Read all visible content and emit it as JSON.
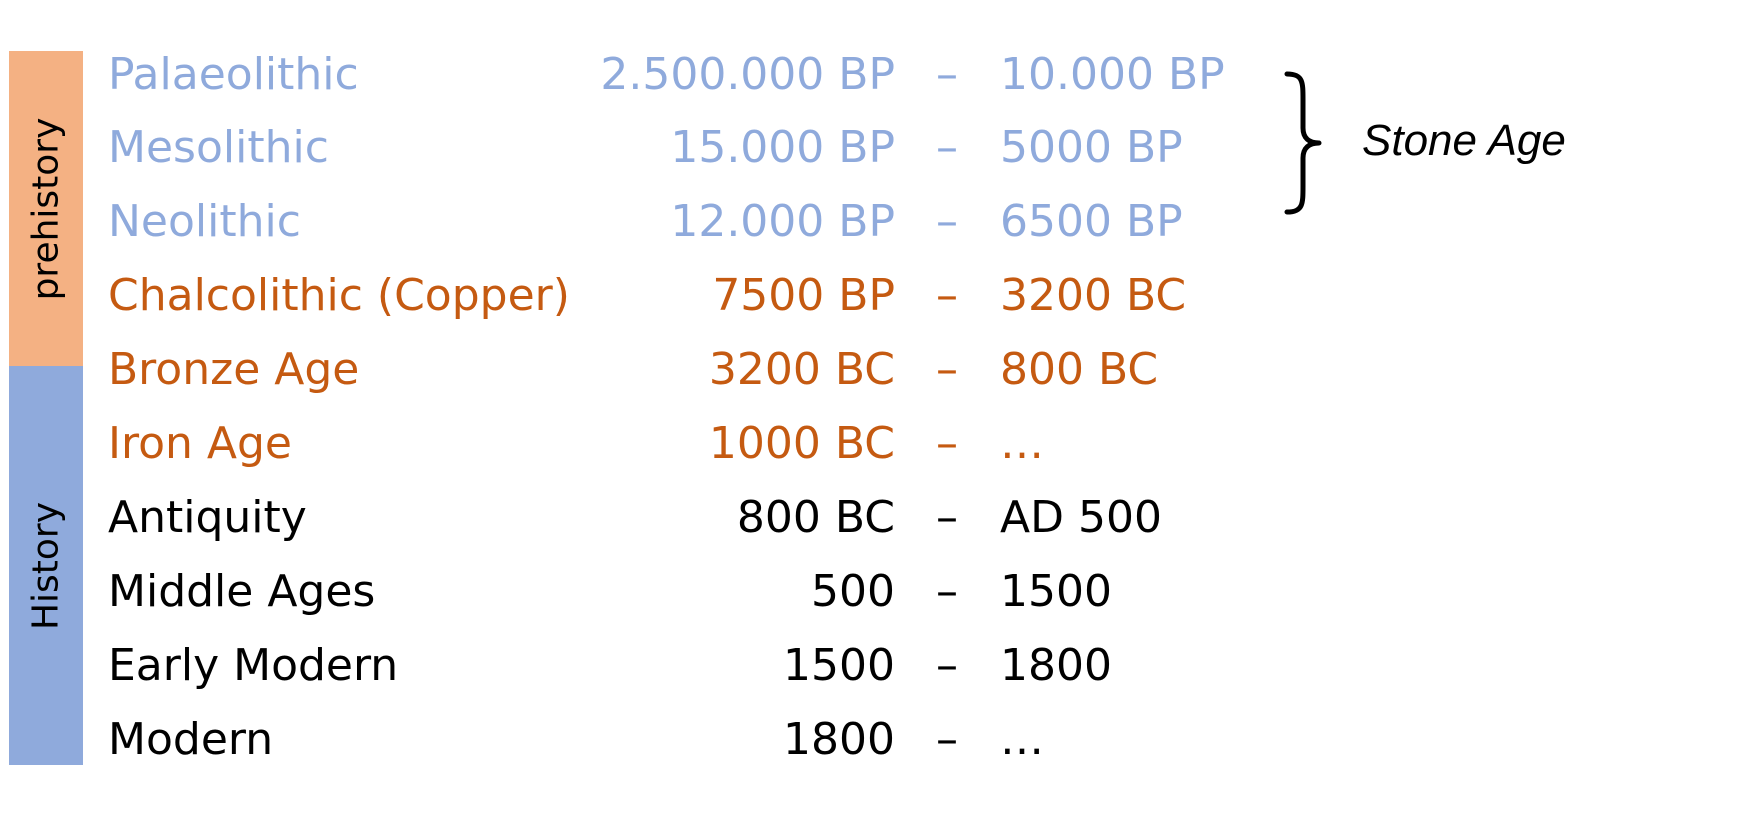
{
  "colors": {
    "stone_text": "#8faadc",
    "metal_text": "#c55a11",
    "history_text": "#000000",
    "prehistory_band": "#f4b183",
    "history_band": "#8faadc"
  },
  "bands": {
    "prehistory_label": "prehistory",
    "history_label": "History"
  },
  "periods": [
    {
      "name": "Palaeolithic",
      "start": "2.500.000 BP",
      "dash": "–",
      "end": "10.000 BP",
      "group": "stone"
    },
    {
      "name": "Mesolithic",
      "start": "15.000 BP",
      "dash": "–",
      "end": "5000 BP",
      "group": "stone"
    },
    {
      "name": "Neolithic",
      "start": "12.000 BP",
      "dash": "–",
      "end": "6500 BP",
      "group": "stone"
    },
    {
      "name": "Chalcolithic (Copper)",
      "start": "7500 BP",
      "dash": "–",
      "end": "3200 BC",
      "group": "metal"
    },
    {
      "name": "Bronze Age",
      "start": "3200 BC",
      "dash": "–",
      "end": "800 BC",
      "group": "metal"
    },
    {
      "name": "Iron Age",
      "start": "1000 BC",
      "dash": "–",
      "end": "…",
      "group": "metal"
    },
    {
      "name": "Antiquity",
      "start": "800 BC",
      "dash": "–",
      "end": "AD 500",
      "group": "history"
    },
    {
      "name": "Middle Ages",
      "start": "500",
      "dash": "–",
      "end": "1500",
      "group": "history"
    },
    {
      "name": "Early Modern",
      "start": "1500",
      "dash": "–",
      "end": "1800",
      "group": "history"
    },
    {
      "name": "Modern",
      "start": "1800",
      "dash": "–",
      "end": "…",
      "group": "history"
    }
  ],
  "annotation": {
    "stone_age_label": "Stone Age"
  }
}
